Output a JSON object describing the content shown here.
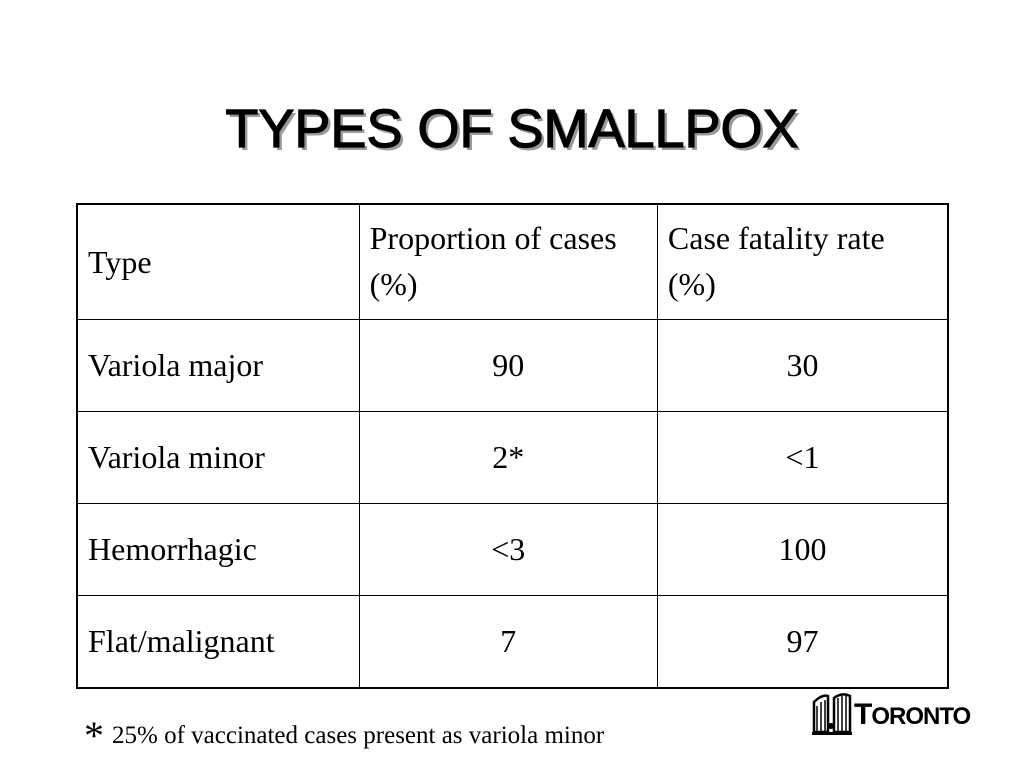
{
  "slide": {
    "title": "TYPES OF SMALLPOX"
  },
  "table": {
    "headers": [
      "Type",
      "Proportion of cases (%)",
      "Case fatality rate (%)"
    ],
    "rows": [
      [
        "Variola major",
        "90",
        "30"
      ],
      [
        "Variola minor",
        "2*",
        "<1"
      ],
      [
        "Hemorrhagic",
        "<3",
        "100"
      ],
      [
        "Flat/malignant",
        "7",
        "97"
      ]
    ]
  },
  "footnote": {
    "marker": "*",
    "text": "25% of vaccinated cases present as variola minor"
  },
  "logo": {
    "first_letter": "T",
    "rest": "ORONTO",
    "icon": "toronto-city-hall-icon"
  }
}
